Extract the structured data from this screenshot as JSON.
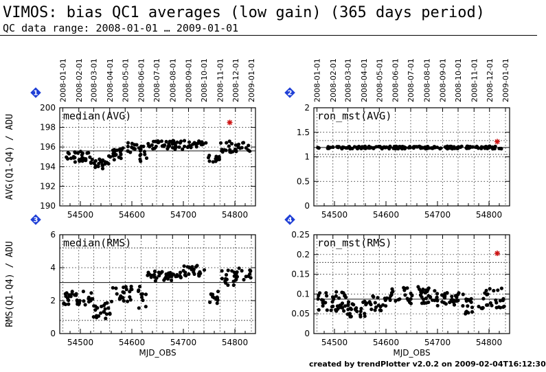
{
  "title": "VIMOS: bias QC1 averages (low gain) (365 days period)",
  "subtitle": "QC data range: 2008-01-01 … 2009-01-01",
  "footer": "created by trendPlotter v2.0.2 on 2009-02-04T16:12:30",
  "colors": {
    "points": "#000000",
    "outlier": "#cc1111",
    "badge": "#1f3fd6",
    "grid": "#000000"
  },
  "chart_data": [
    {
      "type": "scatter",
      "panel_number": "1",
      "title": "median(AVG)",
      "ylabel": "AVG(Q1-Q4) / ADU",
      "xlabel": "",
      "xlim": [
        54460,
        54840
      ],
      "ylim": [
        190,
        200
      ],
      "xticks": [
        54500,
        54600,
        54700,
        54800
      ],
      "yticks": [
        190,
        192,
        194,
        196,
        198,
        200
      ],
      "mean_line": 195.6,
      "sigma_lines": [],
      "date_axis": true,
      "outliers": [
        {
          "x": 54790,
          "y": 198.5
        }
      ],
      "groups": [
        {
          "x0": 54467,
          "x1": 54520,
          "center": 195.0,
          "amp": 0.55,
          "n": 30
        },
        {
          "x0": 54520,
          "x1": 54555,
          "center": 194.3,
          "amp": 0.5,
          "n": 22
        },
        {
          "x0": 54555,
          "x1": 54590,
          "center": 195.3,
          "amp": 0.6,
          "n": 20
        },
        {
          "x0": 54590,
          "x1": 54610,
          "center": 196.0,
          "amp": 0.55,
          "n": 12
        },
        {
          "x0": 54612,
          "x1": 54630,
          "center": 195.2,
          "amp": 0.9,
          "n": 12
        },
        {
          "x0": 54630,
          "x1": 54700,
          "center": 196.2,
          "amp": 0.45,
          "n": 40
        },
        {
          "x0": 54700,
          "x1": 54745,
          "center": 196.3,
          "amp": 0.35,
          "n": 22
        },
        {
          "x0": 54748,
          "x1": 54770,
          "center": 194.8,
          "amp": 0.35,
          "n": 14
        },
        {
          "x0": 54772,
          "x1": 54800,
          "center": 196.0,
          "amp": 0.6,
          "n": 14
        },
        {
          "x0": 54800,
          "x1": 54832,
          "center": 196.0,
          "amp": 0.5,
          "n": 16
        }
      ]
    },
    {
      "type": "scatter",
      "panel_number": "2",
      "title": "ron_mst(AVG)",
      "ylabel": "",
      "xlabel": "",
      "xlim": [
        54460,
        54840
      ],
      "ylim": [
        0,
        2
      ],
      "xticks": [
        54500,
        54600,
        54700,
        54800
      ],
      "yticks": [
        0,
        0.5,
        1,
        1.5,
        2
      ],
      "mean_line": 1.19,
      "sigma_lines": [
        1.05,
        1.33
      ],
      "date_axis": true,
      "outliers": [
        {
          "x": 54816,
          "y": 1.31
        }
      ],
      "groups": [
        {
          "x0": 54467,
          "x1": 54750,
          "center": 1.19,
          "amp": 0.025,
          "n": 150
        },
        {
          "x0": 54755,
          "x1": 54832,
          "center": 1.19,
          "amp": 0.03,
          "n": 35
        }
      ]
    },
    {
      "type": "scatter",
      "panel_number": "3",
      "title": "median(RMS)",
      "ylabel": "RMS(Q1-Q4) / ADU",
      "xlabel": "MJD_OBS",
      "xlim": [
        54460,
        54840
      ],
      "ylim": [
        0,
        6
      ],
      "xticks": [
        54500,
        54600,
        54700,
        54800
      ],
      "yticks": [
        0,
        2,
        4,
        6
      ],
      "mean_line": 3.1,
      "sigma_lines": [
        0.8,
        5.2
      ],
      "date_axis": false,
      "outliers": [],
      "groups": [
        {
          "x0": 54467,
          "x1": 54525,
          "center": 2.2,
          "amp": 0.45,
          "n": 34
        },
        {
          "x0": 54525,
          "x1": 54560,
          "center": 1.4,
          "amp": 0.5,
          "n": 22
        },
        {
          "x0": 54560,
          "x1": 54600,
          "center": 2.4,
          "amp": 0.5,
          "n": 22
        },
        {
          "x0": 54612,
          "x1": 54628,
          "center": 2.2,
          "amp": 0.7,
          "n": 10
        },
        {
          "x0": 54630,
          "x1": 54700,
          "center": 3.5,
          "amp": 0.3,
          "n": 40
        },
        {
          "x0": 54700,
          "x1": 54745,
          "center": 3.8,
          "amp": 0.35,
          "n": 22
        },
        {
          "x0": 54748,
          "x1": 54768,
          "center": 2.2,
          "amp": 0.4,
          "n": 12
        },
        {
          "x0": 54770,
          "x1": 54800,
          "center": 3.4,
          "amp": 0.55,
          "n": 14
        },
        {
          "x0": 54800,
          "x1": 54832,
          "center": 3.6,
          "amp": 0.4,
          "n": 16
        }
      ]
    },
    {
      "type": "scatter",
      "panel_number": "4",
      "title": "ron_mst(RMS)",
      "ylabel": "",
      "xlabel": "MJD_OBS",
      "xlim": [
        54460,
        54840
      ],
      "ylim": [
        0,
        0.25
      ],
      "xticks": [
        54500,
        54600,
        54700,
        54800
      ],
      "yticks": [
        0,
        0.05,
        0.1,
        0.15,
        0.2,
        0.25
      ],
      "mean_line": 0.087,
      "sigma_lines": [
        0.0,
        0.18
      ],
      "date_axis": false,
      "outliers": [
        {
          "x": 54816,
          "y": 0.203
        }
      ],
      "groups": [
        {
          "x0": 54467,
          "x1": 54525,
          "center": 0.082,
          "amp": 0.025,
          "n": 40
        },
        {
          "x0": 54525,
          "x1": 54565,
          "center": 0.062,
          "amp": 0.02,
          "n": 28
        },
        {
          "x0": 54565,
          "x1": 54600,
          "center": 0.075,
          "amp": 0.02,
          "n": 20
        },
        {
          "x0": 54600,
          "x1": 54700,
          "center": 0.098,
          "amp": 0.022,
          "n": 55
        },
        {
          "x0": 54700,
          "x1": 54750,
          "center": 0.088,
          "amp": 0.018,
          "n": 30
        },
        {
          "x0": 54750,
          "x1": 54790,
          "center": 0.072,
          "amp": 0.022,
          "n": 20
        },
        {
          "x0": 54790,
          "x1": 54832,
          "center": 0.09,
          "amp": 0.025,
          "n": 22
        }
      ]
    }
  ],
  "date_ticks": {
    "labels": [
      "2008-01-01",
      "2008-02-01",
      "2008-03-01",
      "2008-04-01",
      "2008-05-01",
      "2008-06-01",
      "2008-07-01",
      "2008-08-01",
      "2008-09-01",
      "2008-10-01",
      "2008-11-01",
      "2008-12-01",
      "2009-01-01"
    ],
    "mjd": [
      54466,
      54497,
      54526,
      54557,
      54587,
      54618,
      54648,
      54679,
      54710,
      54740,
      54771,
      54801,
      54832
    ]
  }
}
